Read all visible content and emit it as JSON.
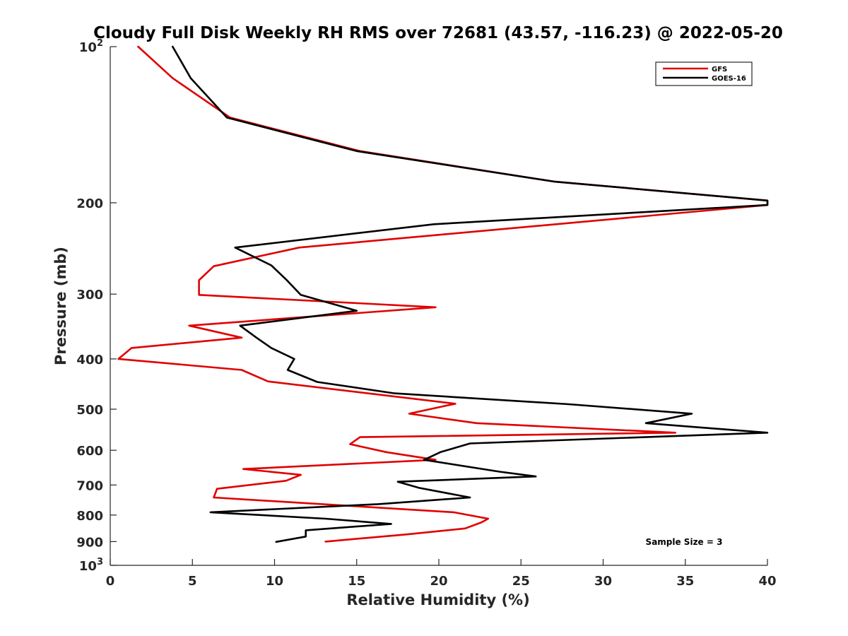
{
  "chart_data": {
    "type": "line",
    "title": "Cloudy Full Disk Weekly RH RMS over 72681 (43.57, -116.23) @ 2022-05-20",
    "xlabel": "Relative Humidity (%)",
    "ylabel": "Pressure (mb)",
    "xlim": [
      0,
      40
    ],
    "ylim": [
      100,
      1000
    ],
    "y_scale": "log",
    "y_reversed": true,
    "grid": false,
    "legend_position": "top-right",
    "x_ticks": [
      "0",
      "5",
      "10",
      "15",
      "20",
      "25",
      "30",
      "35",
      "40"
    ],
    "y_ticks": [
      {
        "value": 100,
        "base": "10",
        "exp": "2"
      },
      {
        "value": 200,
        "label": "200"
      },
      {
        "value": 300,
        "label": "300"
      },
      {
        "value": 400,
        "label": "400"
      },
      {
        "value": 500,
        "label": "500"
      },
      {
        "value": 600,
        "label": "600"
      },
      {
        "value": 700,
        "label": "700"
      },
      {
        "value": 800,
        "label": "800"
      },
      {
        "value": 900,
        "label": "900"
      },
      {
        "value": 1000,
        "base": "10",
        "exp": "3"
      }
    ],
    "series": [
      {
        "name": "GFS",
        "color": "#e00000",
        "x": [
          1.7,
          3.8,
          7.3,
          15.2,
          27.0,
          40.0,
          40.0,
          11.5,
          6.3,
          5.4,
          5.4,
          19.8,
          4.8,
          8.0,
          1.3,
          0.5,
          8.0,
          9.6,
          21.0,
          18.2,
          22.3,
          34.4,
          15.2,
          14.6,
          16.8,
          19.8,
          8.1,
          11.6,
          10.7,
          6.5,
          6.3,
          20.9,
          23.0,
          22.6,
          21.6,
          18.0,
          13.1
        ],
        "y": [
          100,
          115,
          137,
          159,
          182,
          198,
          202,
          244,
          265,
          282,
          301,
          318,
          345,
          364,
          381,
          400,
          420,
          442,
          488,
          510,
          532,
          555,
          566,
          584,
          605,
          626,
          652,
          669,
          687,
          712,
          740,
          790,
          813,
          826,
          849,
          872,
          900
        ]
      },
      {
        "name": "GOES-16",
        "color": "#000000",
        "x": [
          3.8,
          4.9,
          7.1,
          15.0,
          27.0,
          40.0,
          40.0,
          19.7,
          7.6,
          9.8,
          10.7,
          11.6,
          15.0,
          7.9,
          8.9,
          9.8,
          11.2,
          10.8,
          12.6,
          17.3,
          27.9,
          35.4,
          32.6,
          40.0,
          21.9,
          20.1,
          19.1,
          23.7,
          25.9,
          17.5,
          18.8,
          21.9,
          16.3,
          6.1,
          13.1,
          17.1,
          11.9,
          11.9,
          10.1
        ],
        "y": [
          100,
          115,
          137,
          159,
          182,
          198,
          202,
          220,
          244,
          264,
          281,
          301,
          323,
          345,
          364,
          381,
          400,
          420,
          443,
          466,
          489,
          510,
          532,
          555,
          582,
          605,
          626,
          660,
          674,
          690,
          709,
          740,
          762,
          790,
          813,
          832,
          856,
          880,
          901
        ]
      }
    ],
    "annotations": [
      "Sample Size = 3"
    ]
  }
}
